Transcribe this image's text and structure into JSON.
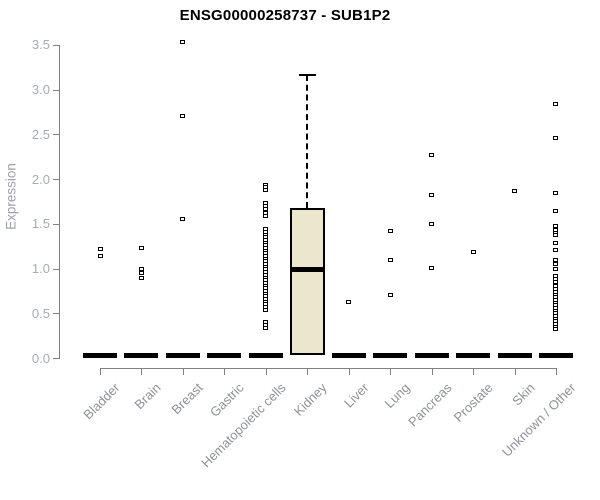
{
  "title": "ENSG00000258737 - SUB1P2",
  "chart_data": {
    "type": "box",
    "title": "ENSG00000258737 - SUB1P2",
    "ylabel": "Expression",
    "xlabel": "",
    "ylim": [
      0,
      3.5
    ],
    "ytick_labels": [
      "0.0",
      "0.5",
      "1.0",
      "1.5",
      "2.0",
      "2.5",
      "3.0",
      "3.5"
    ],
    "grid": "off",
    "legend": "none",
    "categories": [
      "Bladder",
      "Brain",
      "Breast",
      "Gastric",
      "Hematopoietic cells",
      "Kidney",
      "Liver",
      "Lung",
      "Pancreas",
      "Prostate",
      "Skin",
      "Unknown / Other"
    ],
    "boxes": [
      {
        "category": "Bladder",
        "collapsed": true,
        "median": 0,
        "q1": 0,
        "q3": 0,
        "outliers": [
          1.22,
          1.14
        ]
      },
      {
        "category": "Brain",
        "collapsed": true,
        "median": 0,
        "q1": 0,
        "q3": 0,
        "outliers": [
          1.23,
          1.0,
          0.95,
          0.9
        ]
      },
      {
        "category": "Breast",
        "collapsed": true,
        "median": 0,
        "q1": 0,
        "q3": 0,
        "outliers": [
          3.53,
          2.71,
          1.55
        ]
      },
      {
        "category": "Gastric",
        "collapsed": true,
        "median": 0,
        "q1": 0,
        "q3": 0,
        "outliers": []
      },
      {
        "category": "Hematopoietic cells",
        "collapsed": true,
        "median": 0,
        "q1": 0,
        "q3": 0,
        "outliers": [
          1.94,
          1.91,
          1.88,
          1.73,
          1.7,
          1.67,
          1.62,
          1.59,
          1.44,
          1.41,
          1.38,
          1.35,
          1.32,
          1.29,
          1.26,
          1.23,
          1.2,
          1.17,
          1.14,
          1.11,
          1.08,
          1.05,
          1.02,
          0.99,
          0.96,
          0.93,
          0.9,
          0.87,
          0.84,
          0.81,
          0.78,
          0.75,
          0.72,
          0.69,
          0.66,
          0.63,
          0.6,
          0.57,
          0.54,
          0.4,
          0.37,
          0.34
        ]
      },
      {
        "category": "Kidney",
        "collapsed": false,
        "q1": 0.03,
        "median": 0.99,
        "q3": 1.68,
        "whisker_low": 0.03,
        "whisker_high": 3.16,
        "outliers": []
      },
      {
        "category": "Liver",
        "collapsed": true,
        "median": 0,
        "q1": 0,
        "q3": 0,
        "outliers": [
          0.63
        ]
      },
      {
        "category": "Lung",
        "collapsed": true,
        "median": 0,
        "q1": 0,
        "q3": 0,
        "outliers": [
          1.42,
          1.1,
          0.71
        ]
      },
      {
        "category": "Pancreas",
        "collapsed": true,
        "median": 0,
        "q1": 0,
        "q3": 0,
        "outliers": [
          2.27,
          1.82,
          1.5,
          1.01
        ]
      },
      {
        "category": "Prostate",
        "collapsed": true,
        "median": 0,
        "q1": 0,
        "q3": 0,
        "outliers": [
          1.19
        ]
      },
      {
        "category": "Skin",
        "collapsed": true,
        "median": 0,
        "q1": 0,
        "q3": 0,
        "outliers": [
          1.87
        ]
      },
      {
        "category": "Unknown / Other",
        "collapsed": true,
        "median": 0,
        "q1": 0,
        "q3": 0,
        "outliers": [
          2.84,
          2.46,
          1.85,
          1.64,
          1.48,
          1.43,
          1.4,
          1.37,
          1.29,
          1.21,
          1.1,
          1.05,
          1.0,
          0.92,
          0.88,
          0.85,
          0.8,
          0.77,
          0.74,
          0.71,
          0.68,
          0.65,
          0.62,
          0.59,
          0.56,
          0.53,
          0.5,
          0.47,
          0.44,
          0.41,
          0.38,
          0.35,
          0.32
        ]
      }
    ],
    "colors": {
      "box_fill": "#ece7cc",
      "box_border": "#000000",
      "median": "#000000",
      "axis": "#808080",
      "y_tick_label": "#a6acb5",
      "x_tick_label": "#8d9298",
      "title": "#000000",
      "background": "#ffffff"
    }
  }
}
